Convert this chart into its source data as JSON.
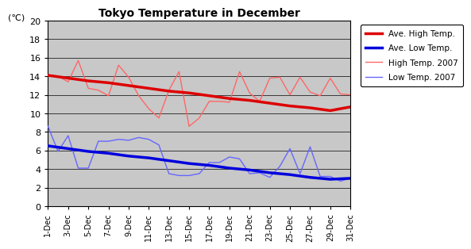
{
  "title": "Tokyo Temperature in December",
  "unit_label": "(℃)",
  "ylim": [
    0,
    20
  ],
  "yticks": [
    0,
    2,
    4,
    6,
    8,
    10,
    12,
    14,
    16,
    18,
    20
  ],
  "xtick_labels": [
    "1-Dec",
    "3-Dec",
    "5-Dec",
    "7-Dec",
    "9-Dec",
    "11-Dec",
    "13-Dec",
    "15-Dec",
    "17-Dec",
    "19-Dec",
    "21-Dec",
    "23-Dec",
    "25-Dec",
    "27-Dec",
    "29-Dec",
    "31-Dec"
  ],
  "ave_high": [
    14.1,
    13.8,
    13.5,
    13.3,
    13.0,
    12.7,
    12.4,
    12.2,
    11.9,
    11.6,
    11.4,
    11.1,
    10.8,
    10.6,
    10.3,
    10.7
  ],
  "ave_low": [
    6.5,
    6.2,
    5.9,
    5.7,
    5.4,
    5.2,
    4.9,
    4.6,
    4.4,
    4.1,
    3.9,
    3.6,
    3.4,
    3.1,
    2.9,
    3.0
  ],
  "high_2007": [
    14.1,
    14.0,
    13.4,
    15.7,
    12.7,
    12.5,
    11.9,
    15.2,
    13.9,
    11.9,
    10.5,
    9.5,
    12.5,
    14.5,
    8.6,
    9.5,
    11.3,
    11.3,
    11.2,
    14.5,
    12.2,
    11.3,
    13.8,
    13.9,
    12.0,
    13.9,
    12.3,
    11.9,
    13.8,
    12.1,
    12.0
  ],
  "low_2007": [
    8.6,
    5.9,
    7.6,
    4.1,
    4.1,
    7.0,
    7.0,
    7.2,
    7.1,
    7.4,
    7.2,
    6.6,
    3.5,
    3.3,
    3.3,
    3.5,
    4.7,
    4.7,
    5.3,
    5.1,
    3.5,
    3.6,
    3.1,
    4.3,
    6.2,
    3.5,
    6.4,
    3.2,
    3.2,
    2.7,
    3.0
  ],
  "ave_high_color": "#dd0000",
  "ave_low_color": "#0000dd",
  "high_2007_color": "#ff6666",
  "low_2007_color": "#6666ff",
  "plot_bg_color": "#c8c8c8",
  "legend_labels": [
    "Ave. High Temp.",
    "Ave. Low Temp.",
    "High Temp. 2007",
    "Low Temp. 2007"
  ]
}
